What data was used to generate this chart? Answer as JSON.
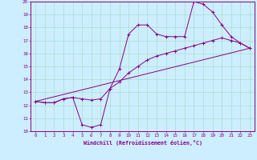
{
  "xlabel": "Windchill (Refroidissement éolien,°C)",
  "bg_color": "#cceeff",
  "grid_color": "#aaddcc",
  "line_color": "#880088",
  "xlim": [
    -0.5,
    23.5
  ],
  "ylim": [
    10,
    20
  ],
  "yticks": [
    10,
    11,
    12,
    13,
    14,
    15,
    16,
    17,
    18,
    19,
    20
  ],
  "xticks": [
    0,
    1,
    2,
    3,
    4,
    5,
    6,
    7,
    8,
    9,
    10,
    11,
    12,
    13,
    14,
    15,
    16,
    17,
    18,
    19,
    20,
    21,
    22,
    23
  ],
  "line1_x": [
    0,
    1,
    2,
    3,
    4,
    5,
    6,
    7,
    8,
    9,
    10,
    11,
    12,
    13,
    14,
    15,
    16,
    17,
    18,
    19,
    20,
    21,
    22,
    23
  ],
  "line1_y": [
    12.3,
    12.2,
    12.2,
    12.5,
    12.6,
    10.5,
    10.3,
    10.5,
    13.3,
    14.8,
    17.5,
    18.2,
    18.2,
    17.5,
    17.3,
    17.3,
    17.3,
    20.0,
    19.8,
    19.2,
    18.2,
    17.3,
    16.8,
    16.4
  ],
  "line2_x": [
    0,
    1,
    2,
    3,
    4,
    5,
    6,
    7,
    8,
    9,
    10,
    11,
    12,
    13,
    14,
    15,
    16,
    17,
    18,
    19,
    20,
    21,
    22,
    23
  ],
  "line2_y": [
    12.3,
    12.2,
    12.2,
    12.5,
    12.6,
    12.5,
    12.4,
    12.5,
    13.3,
    13.8,
    14.5,
    15.0,
    15.5,
    15.8,
    16.0,
    16.2,
    16.4,
    16.6,
    16.8,
    17.0,
    17.2,
    17.0,
    16.8,
    16.4
  ],
  "line3_x": [
    0,
    23
  ],
  "line3_y": [
    12.3,
    16.4
  ]
}
